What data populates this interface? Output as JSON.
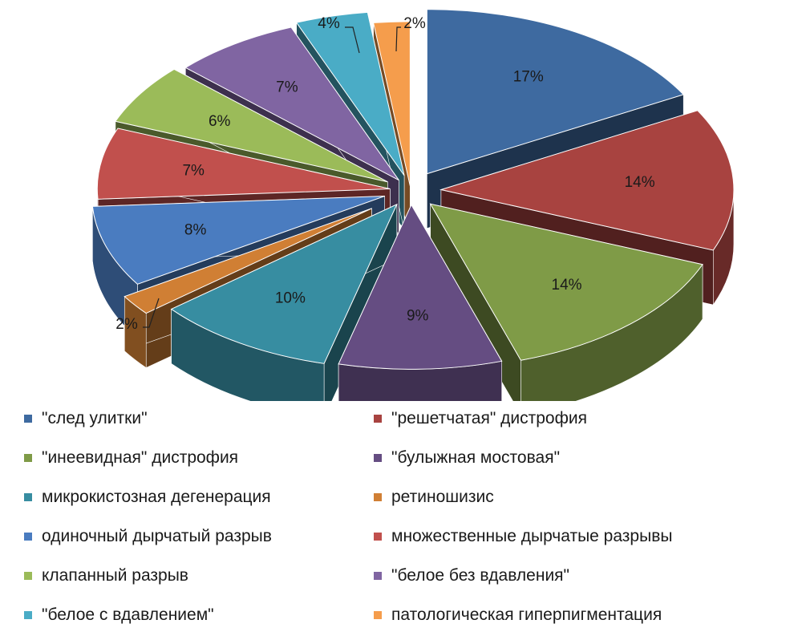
{
  "chart_data": {
    "type": "pie",
    "style": "3d-exploded",
    "title": "",
    "legend_position": "bottom",
    "slices": [
      {
        "name": "\"след улитки\"",
        "value": 17,
        "label": "17%",
        "color": "#3e6aa0"
      },
      {
        "name": "\"решетчатая\" дистрофия",
        "value": 14,
        "label": "14%",
        "color": "#a84340"
      },
      {
        "name": "\"инеевидная\" дистрофия",
        "value": 14,
        "label": "14%",
        "color": "#7f9b47"
      },
      {
        "name": "\"булыжная мостовая\"",
        "value": 9,
        "label": "9%",
        "color": "#654d82"
      },
      {
        "name": "микрокистозная дегенерация",
        "value": 10,
        "label": "10%",
        "color": "#378da1"
      },
      {
        "name": "ретиношизис",
        "value": 2,
        "label": "2%",
        "color": "#d07f34"
      },
      {
        "name": "одиночный дырчатый разрыв",
        "value": 8,
        "label": "8%",
        "color": "#4a7cc0"
      },
      {
        "name": "множественные дырчатые разрывы",
        "value": 7,
        "label": "7%",
        "color": "#c1504d"
      },
      {
        "name": "клапанный разрыв",
        "value": 6,
        "label": "6%",
        "color": "#9bbb59"
      },
      {
        "name": "\"белое без вдавления\"",
        "value": 7,
        "label": "7%",
        "color": "#8065a2"
      },
      {
        "name": "\"белое с вдавлением\"",
        "value": 4,
        "label": "4%",
        "color": "#4aacc6"
      },
      {
        "name": "патологическая гиперпигментация",
        "value": 2,
        "label": "2%",
        "color": "#f59d4c"
      }
    ]
  }
}
